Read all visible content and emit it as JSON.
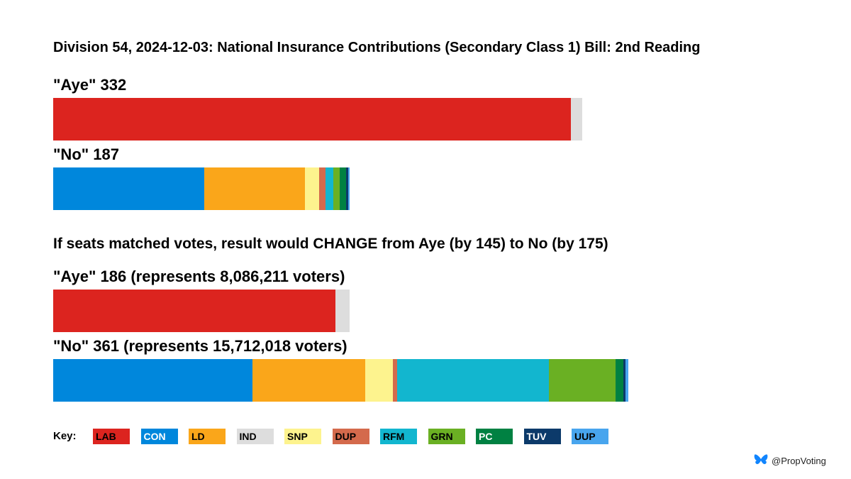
{
  "title": "Division 54, 2024-12-03: National Insurance Contributions (Secondary Class 1) Bill: 2nd Reading",
  "subtitle": "If seats matched votes, result would CHANGE from Aye (by 145) to No (by 175)",
  "credit": "@PropVoting",
  "key_label": "Key:",
  "parties": [
    {
      "code": "LAB",
      "color": "#dc241f",
      "text_color": "#000000"
    },
    {
      "code": "CON",
      "color": "#0087dc",
      "text_color": "#ffffff"
    },
    {
      "code": "LD",
      "color": "#faa61a",
      "text_color": "#000000"
    },
    {
      "code": "IND",
      "color": "#dddddd",
      "text_color": "#000000"
    },
    {
      "code": "SNP",
      "color": "#fdf38e",
      "text_color": "#000000"
    },
    {
      "code": "DUP",
      "color": "#d46a4c",
      "text_color": "#000000"
    },
    {
      "code": "RFM",
      "color": "#12b6cf",
      "text_color": "#000000"
    },
    {
      "code": "GRN",
      "color": "#6ab023",
      "text_color": "#000000"
    },
    {
      "code": "PC",
      "color": "#008142",
      "text_color": "#ffffff"
    },
    {
      "code": "TUV",
      "color": "#0c3a6a",
      "text_color": "#ffffff"
    },
    {
      "code": "UUP",
      "color": "#48a5ee",
      "text_color": "#000000"
    }
  ],
  "chart_data": {
    "type": "bar",
    "orientation": "horizontal-stacked",
    "unit": "MPs (votes)",
    "scale_max": 361,
    "bars": [
      {
        "id": "actual-aye",
        "label": "\"Aye\" 332",
        "total": 332,
        "segments": [
          {
            "party": "LAB",
            "value": 325
          },
          {
            "party": "IND",
            "value": 7
          }
        ]
      },
      {
        "id": "actual-no",
        "label": "\"No\" 187",
        "total": 187,
        "segments": [
          {
            "party": "CON",
            "value": 95
          },
          {
            "party": "LD",
            "value": 63
          },
          {
            "party": "SNP",
            "value": 9
          },
          {
            "party": "DUP",
            "value": 4
          },
          {
            "party": "RFM",
            "value": 5
          },
          {
            "party": "GRN",
            "value": 4
          },
          {
            "party": "PC",
            "value": 4
          },
          {
            "party": "TUV",
            "value": 1
          },
          {
            "party": "UUP",
            "value": 1
          }
        ]
      },
      {
        "id": "proportional-aye",
        "label": "\"Aye\" 186 (represents 8,086,211 voters)",
        "total": 186,
        "segments": [
          {
            "party": "LAB",
            "value": 177
          },
          {
            "party": "IND",
            "value": 9
          }
        ]
      },
      {
        "id": "proportional-no",
        "label": "\"No\" 361 (represents 15,712,018 voters)",
        "total": 361,
        "segments": [
          {
            "party": "CON",
            "value": 125
          },
          {
            "party": "LD",
            "value": 71
          },
          {
            "party": "SNP",
            "value": 17
          },
          {
            "party": "DUP",
            "value": 3
          },
          {
            "party": "RFM",
            "value": 95
          },
          {
            "party": "GRN",
            "value": 42
          },
          {
            "party": "PC",
            "value": 5
          },
          {
            "party": "TUV",
            "value": 1
          },
          {
            "party": "UUP",
            "value": 2
          }
        ]
      }
    ]
  }
}
